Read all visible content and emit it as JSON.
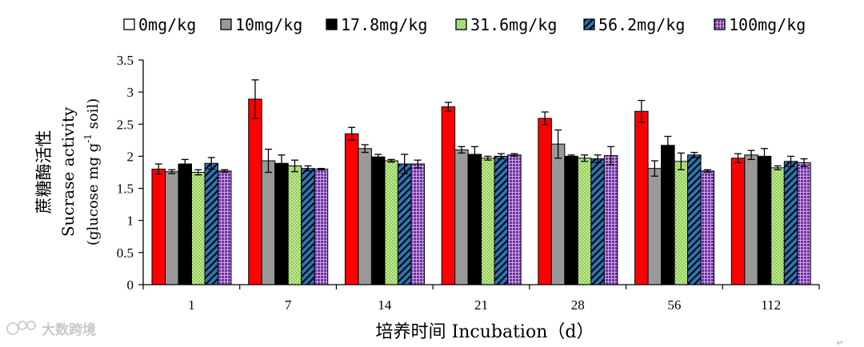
{
  "chart_data": {
    "type": "bar",
    "categories": [
      "1",
      "7",
      "14",
      "21",
      "28",
      "56",
      "112"
    ],
    "series": [
      {
        "name": "0mg/kg",
        "color": "#ff0000",
        "pattern": "solid",
        "values": [
          1.8,
          2.89,
          2.35,
          2.77,
          2.59,
          2.7,
          1.97
        ],
        "errors": [
          0.08,
          0.3,
          0.1,
          0.07,
          0.1,
          0.17,
          0.07
        ]
      },
      {
        "name": "10mg/kg",
        "color": "#999999",
        "pattern": "solid",
        "values": [
          1.76,
          1.93,
          2.12,
          2.1,
          2.19,
          1.81,
          2.02
        ],
        "errors": [
          0.03,
          0.18,
          0.06,
          0.05,
          0.22,
          0.12,
          0.07
        ]
      },
      {
        "name": "17.8mg/kg",
        "color": "#000000",
        "pattern": "solid",
        "values": [
          1.88,
          1.89,
          1.99,
          2.03,
          2.0,
          2.17,
          2.0
        ],
        "errors": [
          0.07,
          0.13,
          0.04,
          0.12,
          0.02,
          0.14,
          0.12
        ]
      },
      {
        "name": "31.6mg/kg",
        "color": "#92d050",
        "pattern": "dots",
        "values": [
          1.75,
          1.85,
          1.93,
          1.97,
          1.97,
          1.92,
          1.82
        ],
        "errors": [
          0.04,
          0.09,
          0.02,
          0.03,
          0.05,
          0.13,
          0.03
        ]
      },
      {
        "name": "56.2mg/kg",
        "color": "#2e75b6",
        "pattern": "diagonal",
        "values": [
          1.89,
          1.81,
          1.88,
          2.0,
          1.96,
          2.02,
          1.92
        ],
        "errors": [
          0.09,
          0.04,
          0.15,
          0.04,
          0.06,
          0.04,
          0.08
        ]
      },
      {
        "name": "100mg/kg",
        "color": "#7030a0",
        "pattern": "grid",
        "values": [
          1.77,
          1.8,
          1.88,
          2.02,
          2.01,
          1.77,
          1.9
        ],
        "errors": [
          0.02,
          0.01,
          0.06,
          0.02,
          0.14,
          0.02,
          0.06
        ]
      }
    ],
    "ylim": [
      0,
      3.5
    ],
    "yticks": [
      "0",
      "0.5",
      "1",
      "1.5",
      "2",
      "2.5",
      "3",
      "3.5"
    ],
    "ylabel_line1": "蔗糖酶活性",
    "ylabel_line2": "Sucrase activity",
    "ylabel_line3_prefix": "(glucose mg g",
    "ylabel_line3_sup": "-1",
    "ylabel_line3_suffix": " soil)",
    "xlabel": "培养时间 Incubation（d）",
    "legend_position": "top"
  },
  "watermark": "大数跨境"
}
